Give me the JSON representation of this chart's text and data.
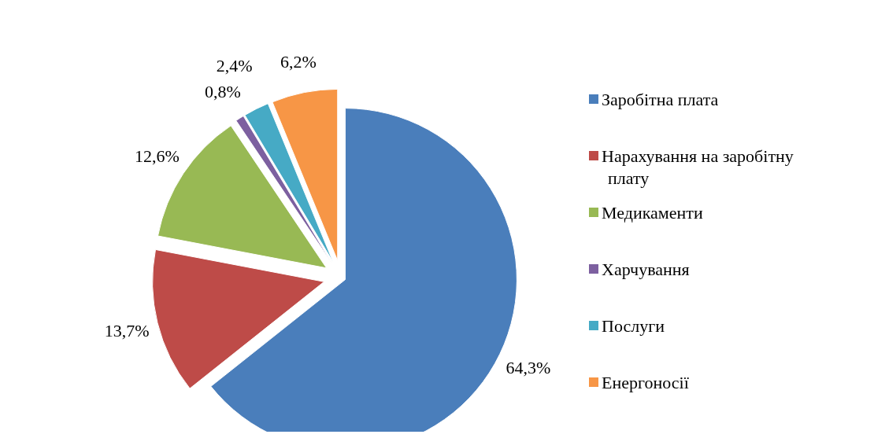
{
  "chart_data": {
    "type": "pie",
    "categories": [
      "Заробітна плата",
      "Нарахування на заробітну плату",
      "Медикаменти",
      "Харчування",
      "Послуги",
      "Енергоносії"
    ],
    "values": [
      64.3,
      13.7,
      12.6,
      0.8,
      2.4,
      6.2
    ],
    "value_labels": [
      "64,3%",
      "13,7%",
      "12,6%",
      "0,8%",
      "2,4%",
      "6,2%"
    ],
    "colors": [
      "#4a7ebb",
      "#be4b48",
      "#98b954",
      "#7d60a0",
      "#46aac5",
      "#f79646"
    ],
    "legend": "right"
  }
}
